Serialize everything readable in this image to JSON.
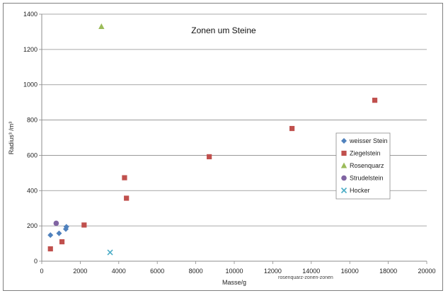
{
  "chart_data": {
    "type": "scatter",
    "title": "Zonen um Steine",
    "xlabel": "Masse/g",
    "ylabel": "Radius³ /m³",
    "xlim": [
      0,
      20000
    ],
    "ylim": [
      0,
      1400
    ],
    "x_ticks": [
      0,
      2000,
      4000,
      6000,
      8000,
      10000,
      12000,
      14000,
      16000,
      18000,
      20000
    ],
    "y_ticks": [
      0,
      200,
      400,
      600,
      800,
      1000,
      1200,
      1400
    ],
    "grid": "horizontal",
    "legend_position": "right",
    "series": [
      {
        "name": "weisser Stein",
        "marker": "diamond",
        "color": "#4f81bd",
        "points": [
          [
            450,
            148
          ],
          [
            900,
            158
          ],
          [
            1250,
            182
          ],
          [
            1280,
            195
          ]
        ]
      },
      {
        "name": "Ziegelstein",
        "marker": "square",
        "color": "#c0504d",
        "points": [
          [
            450,
            70
          ],
          [
            1050,
            110
          ],
          [
            2200,
            205
          ],
          [
            4300,
            473
          ],
          [
            4400,
            357
          ],
          [
            8700,
            592
          ],
          [
            13000,
            752
          ],
          [
            17300,
            912
          ]
        ]
      },
      {
        "name": "Rosenquarz",
        "marker": "triangle",
        "color": "#9bbb59",
        "points": [
          [
            3100,
            1330
          ]
        ]
      },
      {
        "name": "Strudelstein",
        "marker": "circle",
        "color": "#8064a2",
        "points": [
          [
            750,
            215
          ]
        ]
      },
      {
        "name": "Hocker",
        "marker": "x",
        "color": "#4bacc6",
        "points": [
          [
            3550,
            50
          ]
        ]
      }
    ]
  },
  "footnote": "rosenquarz-zonen-zonen"
}
